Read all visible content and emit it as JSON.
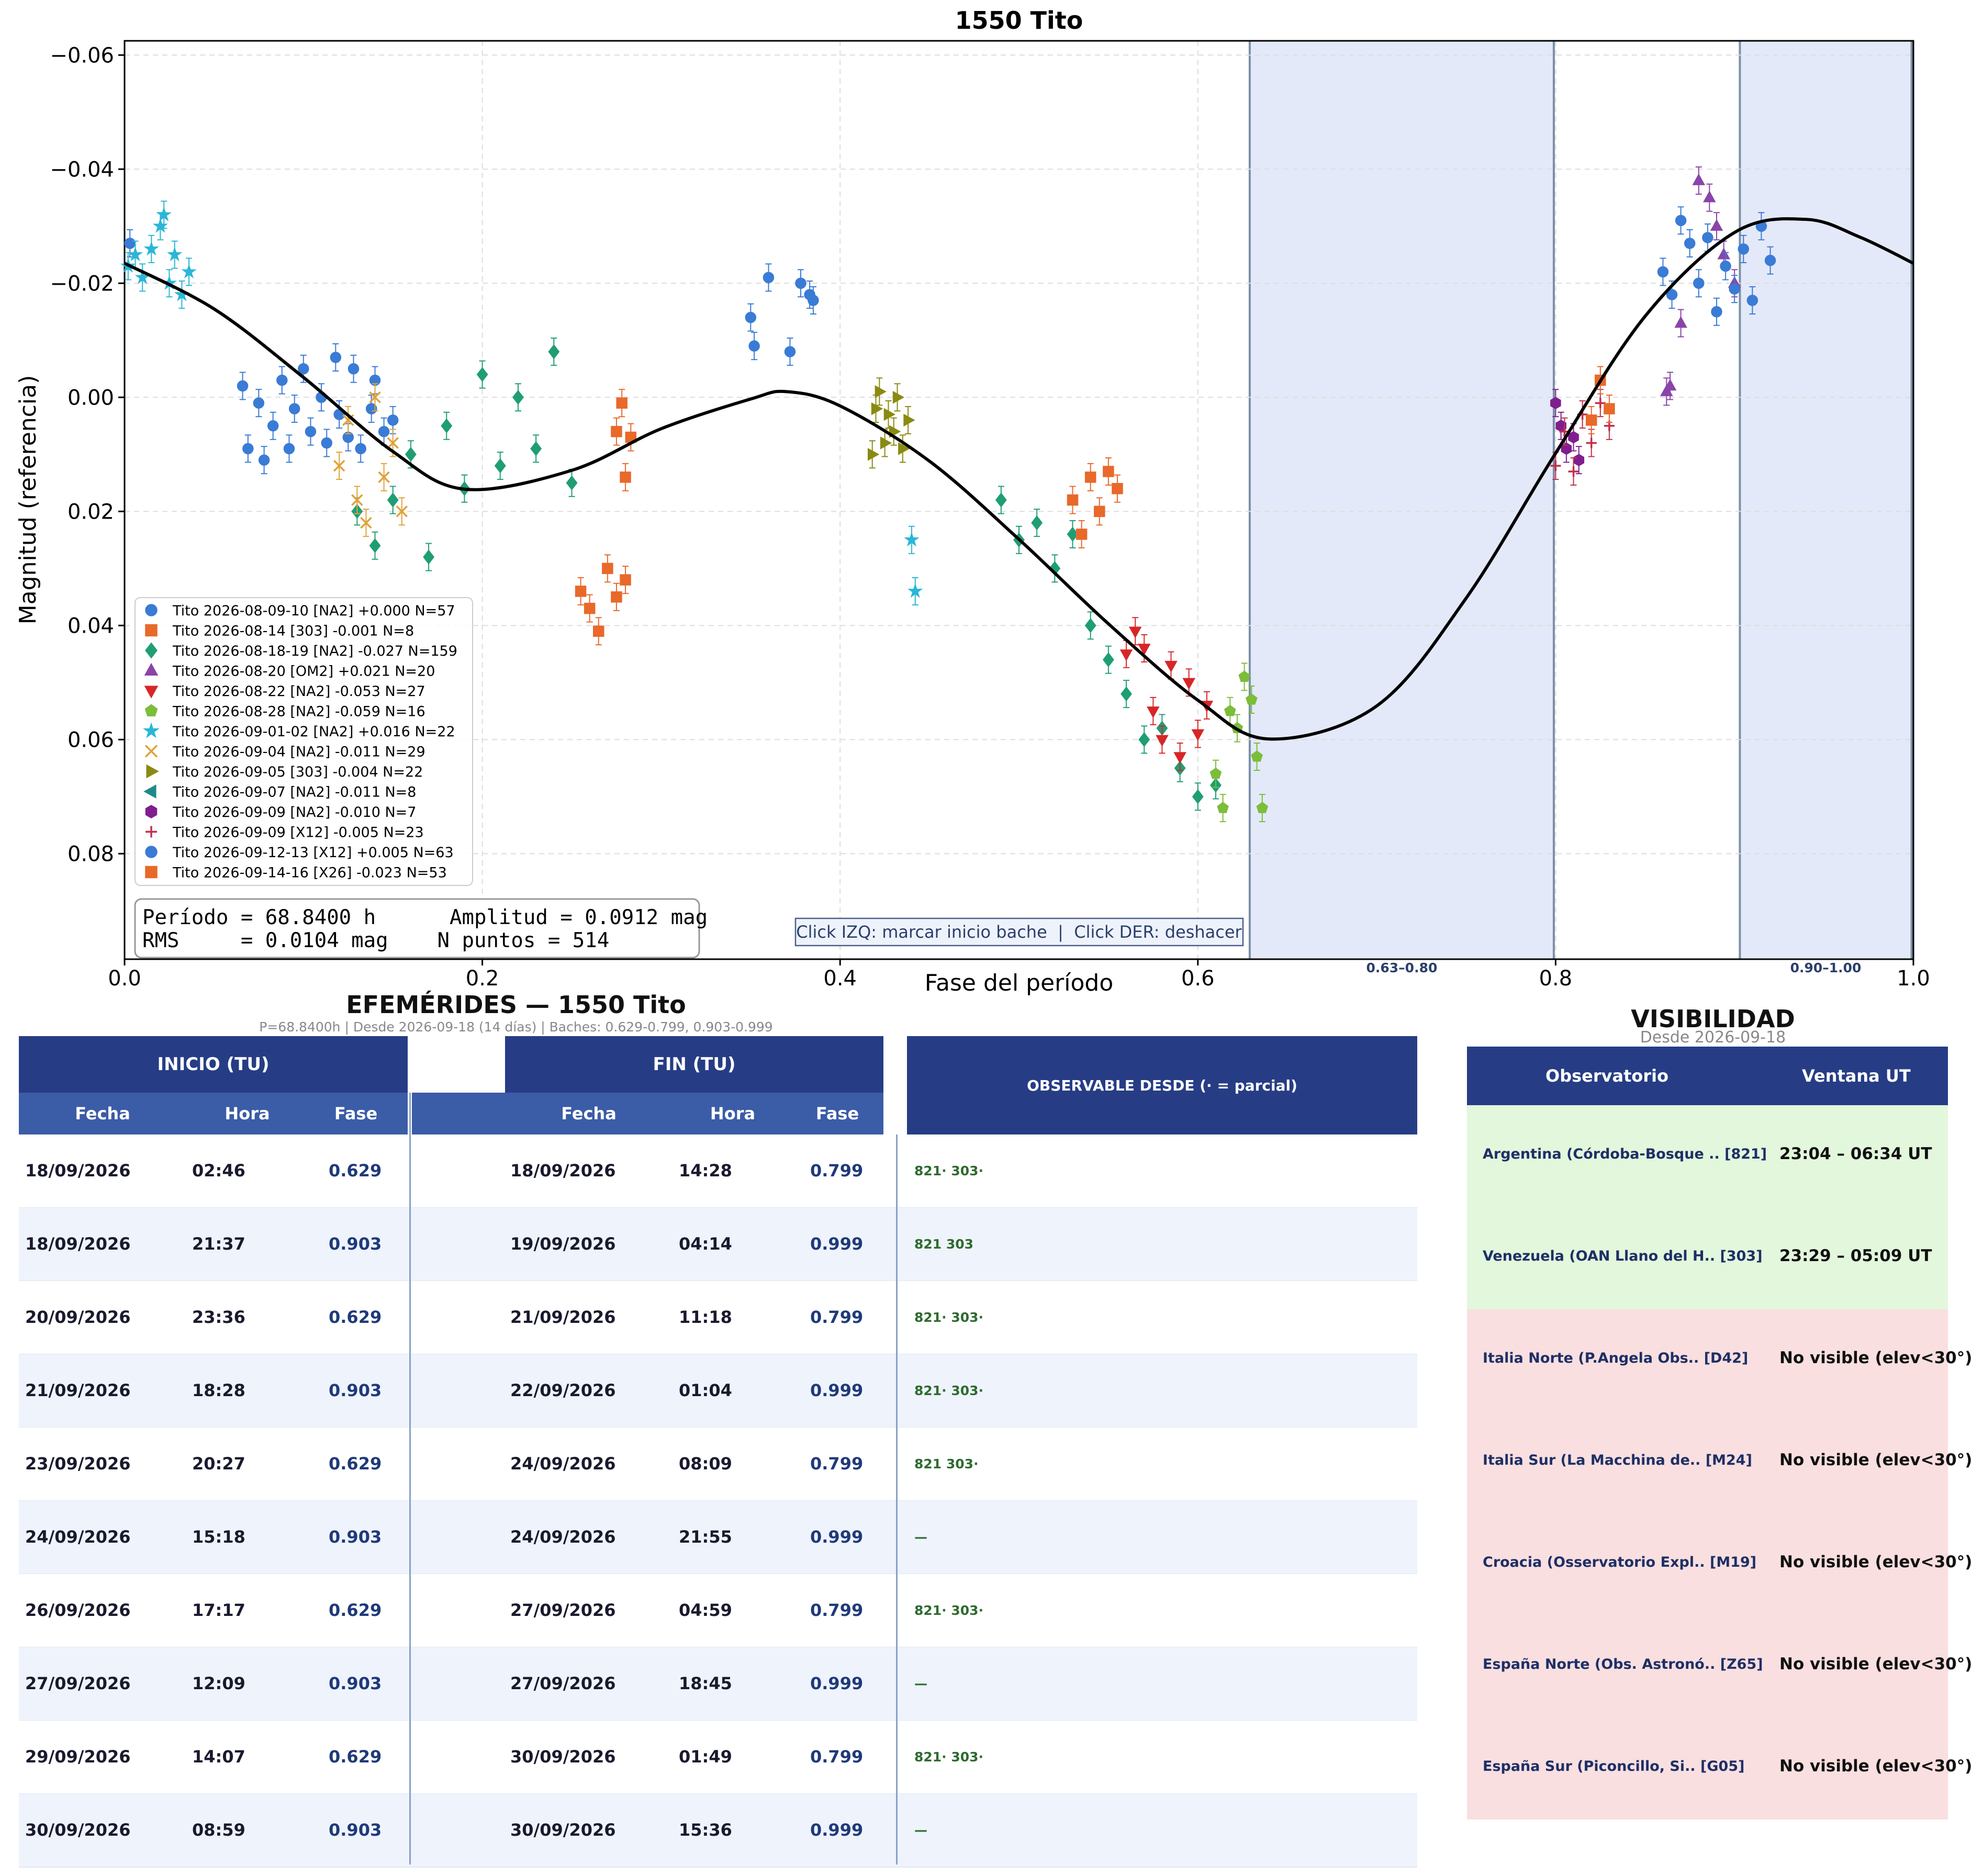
{
  "chart_data": {
    "type": "scatter",
    "title": "1550 Tito",
    "xlabel": "Fase del período",
    "ylabel": "Magnitud (referencia)",
    "xlim": [
      0.0,
      1.0
    ],
    "ylim": [
      -0.0625,
      0.0985
    ],
    "y_inverted": true,
    "grid": true,
    "xticks": [
      "0.0",
      "0.2",
      "0.4",
      "0.6",
      "0.8",
      "1.0"
    ],
    "yticks": [
      "−0.06",
      "−0.04",
      "−0.02",
      "0.00",
      "0.02",
      "0.04",
      "0.06",
      "0.08"
    ],
    "legend_position": "lower-left",
    "series": [
      {
        "name": "Tito 2026-08-09-10 [NA2] +0.000 N=57",
        "marker": "circle",
        "color": "#3a7bd5",
        "x": [
          0.003,
          0.066,
          0.069,
          0.075,
          0.078,
          0.083,
          0.088,
          0.092,
          0.095,
          0.1,
          0.104,
          0.11,
          0.113,
          0.118,
          0.12,
          0.125,
          0.128,
          0.132,
          0.138,
          0.14,
          0.145,
          0.15,
          0.35,
          0.352,
          0.36,
          0.372,
          0.378,
          0.383,
          0.385
        ],
        "y": [
          -0.027,
          -0.002,
          0.009,
          0.001,
          0.011,
          0.005,
          -0.003,
          0.009,
          0.002,
          -0.005,
          0.006,
          0.0,
          0.008,
          -0.007,
          0.003,
          0.007,
          -0.005,
          0.009,
          0.002,
          -0.003,
          0.006,
          0.004,
          -0.014,
          -0.009,
          -0.021,
          -0.008,
          -0.02,
          -0.018,
          -0.017
        ]
      },
      {
        "name": "Tito 2026-08-14 [303] -0.001 N=8",
        "marker": "square",
        "color": "#e8692a",
        "x": [
          0.255,
          0.26,
          0.265,
          0.27,
          0.275,
          0.28
        ],
        "y": [
          0.034,
          0.037,
          0.041,
          0.03,
          0.035,
          0.032
        ]
      },
      {
        "name": "Tito 2026-08-18-19 [NA2] -0.027 N=159",
        "marker": "diamond",
        "color": "#1f9e73",
        "x": [
          0.13,
          0.14,
          0.15,
          0.16,
          0.17,
          0.18,
          0.19,
          0.2,
          0.21,
          0.22,
          0.23,
          0.24,
          0.25,
          0.49,
          0.5,
          0.51,
          0.52,
          0.53,
          0.54,
          0.55,
          0.56,
          0.57,
          0.58,
          0.59,
          0.6,
          0.61
        ],
        "y": [
          0.02,
          0.026,
          0.018,
          0.01,
          0.028,
          0.005,
          0.016,
          -0.004,
          0.012,
          0.0,
          0.009,
          -0.008,
          0.015,
          0.018,
          0.025,
          0.022,
          0.03,
          0.024,
          0.04,
          0.046,
          0.052,
          0.06,
          0.058,
          0.065,
          0.07,
          0.068
        ]
      },
      {
        "name": "Tito 2026-08-20 [OM2] +0.021 N=20",
        "marker": "triangle-up",
        "color": "#8a44a8",
        "x": [
          0.862,
          0.864,
          0.87,
          0.88,
          0.886,
          0.89,
          0.894,
          0.9
        ],
        "y": [
          -0.001,
          -0.002,
          -0.013,
          -0.038,
          -0.035,
          -0.03,
          -0.025,
          -0.02
        ]
      },
      {
        "name": "Tito 2026-08-22 [NA2] -0.053 N=27",
        "marker": "triangle-down",
        "color": "#d62728",
        "x": [
          0.56,
          0.565,
          0.57,
          0.575,
          0.58,
          0.585,
          0.59,
          0.595,
          0.6,
          0.605
        ],
        "y": [
          0.045,
          0.041,
          0.044,
          0.055,
          0.06,
          0.047,
          0.063,
          0.05,
          0.059,
          0.054
        ]
      },
      {
        "name": "Tito 2026-08-28 [NA2] -0.059 N=16",
        "marker": "pentagon",
        "color": "#7cbd3a",
        "x": [
          0.61,
          0.614,
          0.618,
          0.622,
          0.626,
          0.63,
          0.633,
          0.636
        ],
        "y": [
          0.066,
          0.072,
          0.055,
          0.058,
          0.049,
          0.053,
          0.063,
          0.072
        ]
      },
      {
        "name": "Tito 2026-09-01-02 [NA2] +0.016 N=22",
        "marker": "star",
        "color": "#2ab6d6",
        "x": [
          0.002,
          0.006,
          0.01,
          0.015,
          0.02,
          0.022,
          0.025,
          0.028,
          0.032,
          0.036,
          0.44,
          0.442
        ],
        "y": [
          -0.023,
          -0.025,
          -0.021,
          -0.026,
          -0.03,
          -0.032,
          -0.02,
          -0.025,
          -0.018,
          -0.022,
          0.025,
          0.034
        ]
      },
      {
        "name": "Tito 2026-09-04 [NA2] -0.011 N=29",
        "marker": "x",
        "color": "#e0a23a",
        "x": [
          0.12,
          0.125,
          0.13,
          0.135,
          0.14,
          0.145,
          0.15,
          0.155
        ],
        "y": [
          0.012,
          0.004,
          0.018,
          0.022,
          0.0,
          0.014,
          0.008,
          0.02
        ]
      },
      {
        "name": "Tito 2026-09-05 [303] -0.004 N=22",
        "marker": "triangle-right",
        "color": "#8a8a12",
        "x": [
          0.418,
          0.42,
          0.422,
          0.425,
          0.427,
          0.43,
          0.432,
          0.435,
          0.438
        ],
        "y": [
          0.01,
          0.002,
          -0.001,
          0.008,
          0.003,
          0.006,
          0.0,
          0.009,
          0.004
        ]
      },
      {
        "name": "Tito 2026-09-07 [NA2] -0.011 N=8",
        "marker": "triangle-left",
        "color": "#1d8a8a",
        "x": [],
        "y": []
      },
      {
        "name": "Tito 2026-09-09 [NA2] -0.010 N=7",
        "marker": "hexagon",
        "color": "#7f1f8f",
        "x": [
          0.8,
          0.803,
          0.806,
          0.81,
          0.813
        ],
        "y": [
          0.001,
          0.005,
          0.009,
          0.007,
          0.011
        ]
      },
      {
        "name": "Tito 2026-09-09 [X12] -0.005 N=23",
        "marker": "plus",
        "color": "#c0304a",
        "x": [
          0.8,
          0.805,
          0.81,
          0.815,
          0.82,
          0.825,
          0.83
        ],
        "y": [
          0.012,
          0.006,
          0.013,
          0.003,
          0.008,
          0.001,
          0.005
        ]
      },
      {
        "name": "Tito 2026-09-12-13 [X12] +0.005 N=63",
        "marker": "circle",
        "color": "#3a7bd5",
        "x": [
          0.86,
          0.865,
          0.87,
          0.875,
          0.88,
          0.885,
          0.89,
          0.895,
          0.9,
          0.905,
          0.91,
          0.915,
          0.92
        ],
        "y": [
          -0.022,
          -0.018,
          -0.031,
          -0.027,
          -0.02,
          -0.028,
          -0.015,
          -0.023,
          -0.019,
          -0.026,
          -0.017,
          -0.03,
          -0.024
        ]
      },
      {
        "name": "Tito 2026-09-14-16 [X26] -0.023 N=53",
        "marker": "square",
        "color": "#e8692a",
        "x": [
          0.275,
          0.278,
          0.28,
          0.283,
          0.53,
          0.535,
          0.54,
          0.545,
          0.55,
          0.555,
          0.82,
          0.825,
          0.83
        ],
        "y": [
          0.006,
          0.001,
          0.014,
          0.007,
          0.018,
          0.024,
          0.014,
          0.02,
          0.013,
          0.016,
          0.004,
          -0.003,
          0.002
        ]
      }
    ],
    "fit_curve": {
      "color": "#000000",
      "points": [
        [
          0.0,
          -0.0235
        ],
        [
          0.05,
          -0.0155
        ],
        [
          0.1,
          -0.0035
        ],
        [
          0.15,
          0.0095
        ],
        [
          0.19,
          0.0161
        ],
        [
          0.25,
          0.0128
        ],
        [
          0.3,
          0.0055
        ],
        [
          0.35,
          0.0003
        ],
        [
          0.37,
          -0.001
        ],
        [
          0.4,
          0.0015
        ],
        [
          0.45,
          0.0112
        ],
        [
          0.5,
          0.0249
        ],
        [
          0.55,
          0.0397
        ],
        [
          0.6,
          0.0531
        ],
        [
          0.64,
          0.0599
        ],
        [
          0.7,
          0.0541
        ],
        [
          0.75,
          0.0352
        ],
        [
          0.8,
          0.0098
        ],
        [
          0.85,
          -0.0142
        ],
        [
          0.9,
          -0.0289
        ],
        [
          0.94,
          -0.0312
        ],
        [
          0.97,
          -0.0281
        ],
        [
          1.0,
          -0.0235
        ]
      ]
    },
    "gap_bands": [
      {
        "x0": 0.629,
        "x1": 0.799,
        "label": "0.63–0.80"
      },
      {
        "x0": 0.903,
        "x1": 0.999,
        "label": "0.90–1.00"
      }
    ],
    "stats": {
      "line1": "Período = 68.8400 h      Amplitud = 0.0912 mag",
      "line2": "RMS     = 0.0104 mag    N puntos = 514"
    },
    "hint": "Click IZQ: marcar inicio bache  |  Click DER: deshacer",
    "colors": {
      "band_fill": "#e3e9f8",
      "band_edge": "#7b8fa8"
    }
  },
  "ephemeris": {
    "title": "EFEMÉRIDES — 1550 Tito",
    "subtitle": "P=68.8400h  |  Desde 2026-09-18 (14 días)  |  Baches: 0.629-0.799, 0.903-0.999",
    "start_header": "INICIO (TU)",
    "end_header": "FIN (TU)",
    "observable_header": "OBSERVABLE DESDE  (· = parcial)",
    "col_date": "Fecha",
    "col_time": "Hora",
    "col_phase": "Fase",
    "rows": [
      {
        "start_date": "18/09/2026",
        "start_time": "02:46",
        "start_phase": "0.629",
        "end_date": "18/09/2026",
        "end_time": "14:28",
        "end_phase": "0.799",
        "observable": "821· 303·"
      },
      {
        "start_date": "18/09/2026",
        "start_time": "21:37",
        "start_phase": "0.903",
        "end_date": "19/09/2026",
        "end_time": "04:14",
        "end_phase": "0.999",
        "observable": "821 303"
      },
      {
        "start_date": "20/09/2026",
        "start_time": "23:36",
        "start_phase": "0.629",
        "end_date": "21/09/2026",
        "end_time": "11:18",
        "end_phase": "0.799",
        "observable": "821· 303·"
      },
      {
        "start_date": "21/09/2026",
        "start_time": "18:28",
        "start_phase": "0.903",
        "end_date": "22/09/2026",
        "end_time": "01:04",
        "end_phase": "0.999",
        "observable": "821· 303·"
      },
      {
        "start_date": "23/09/2026",
        "start_time": "20:27",
        "start_phase": "0.629",
        "end_date": "24/09/2026",
        "end_time": "08:09",
        "end_phase": "0.799",
        "observable": "821 303·"
      },
      {
        "start_date": "24/09/2026",
        "start_time": "15:18",
        "start_phase": "0.903",
        "end_date": "24/09/2026",
        "end_time": "21:55",
        "end_phase": "0.999",
        "observable": "—"
      },
      {
        "start_date": "26/09/2026",
        "start_time": "17:17",
        "start_phase": "0.629",
        "end_date": "27/09/2026",
        "end_time": "04:59",
        "end_phase": "0.799",
        "observable": "821· 303·"
      },
      {
        "start_date": "27/09/2026",
        "start_time": "12:09",
        "start_phase": "0.903",
        "end_date": "27/09/2026",
        "end_time": "18:45",
        "end_phase": "0.999",
        "observable": "—"
      },
      {
        "start_date": "29/09/2026",
        "start_time": "14:07",
        "start_phase": "0.629",
        "end_date": "30/09/2026",
        "end_time": "01:49",
        "end_phase": "0.799",
        "observable": "821· 303·"
      },
      {
        "start_date": "30/09/2026",
        "start_time": "08:59",
        "start_phase": "0.903",
        "end_date": "30/09/2026",
        "end_time": "15:36",
        "end_phase": "0.999",
        "observable": "—"
      }
    ]
  },
  "visibility": {
    "title": "VISIBILIDAD",
    "subtitle": "Desde 2026-09-18",
    "col_observatory": "Observatorio",
    "col_window": "Ventana UT",
    "colors": {
      "visible": "#e2f7dc",
      "not_visible": "#f9dfe0"
    },
    "rows": [
      {
        "name": "Argentina (Córdoba-Bosque .. [821]",
        "window": "23:04 – 06:34 UT",
        "visible": true
      },
      {
        "name": "Venezuela (OAN Llano del H.. [303]",
        "window": "23:29 – 05:09 UT",
        "visible": true
      },
      {
        "name": "Italia Norte (P.Angela Obs.. [D42]",
        "window": "No visible (elev<30°)",
        "visible": false
      },
      {
        "name": "Italia Sur (La Macchina de.. [M24]",
        "window": "No visible (elev<30°)",
        "visible": false
      },
      {
        "name": "Croacia (Osservatorio Expl.. [M19]",
        "window": "No visible (elev<30°)",
        "visible": false
      },
      {
        "name": "España Norte (Obs. Astronó.. [Z65]",
        "window": "No visible (elev<30°)",
        "visible": false
      },
      {
        "name": "España Sur (Piconcillo, Si.. [G05]",
        "window": "No visible (elev<30°)",
        "visible": false
      }
    ]
  }
}
